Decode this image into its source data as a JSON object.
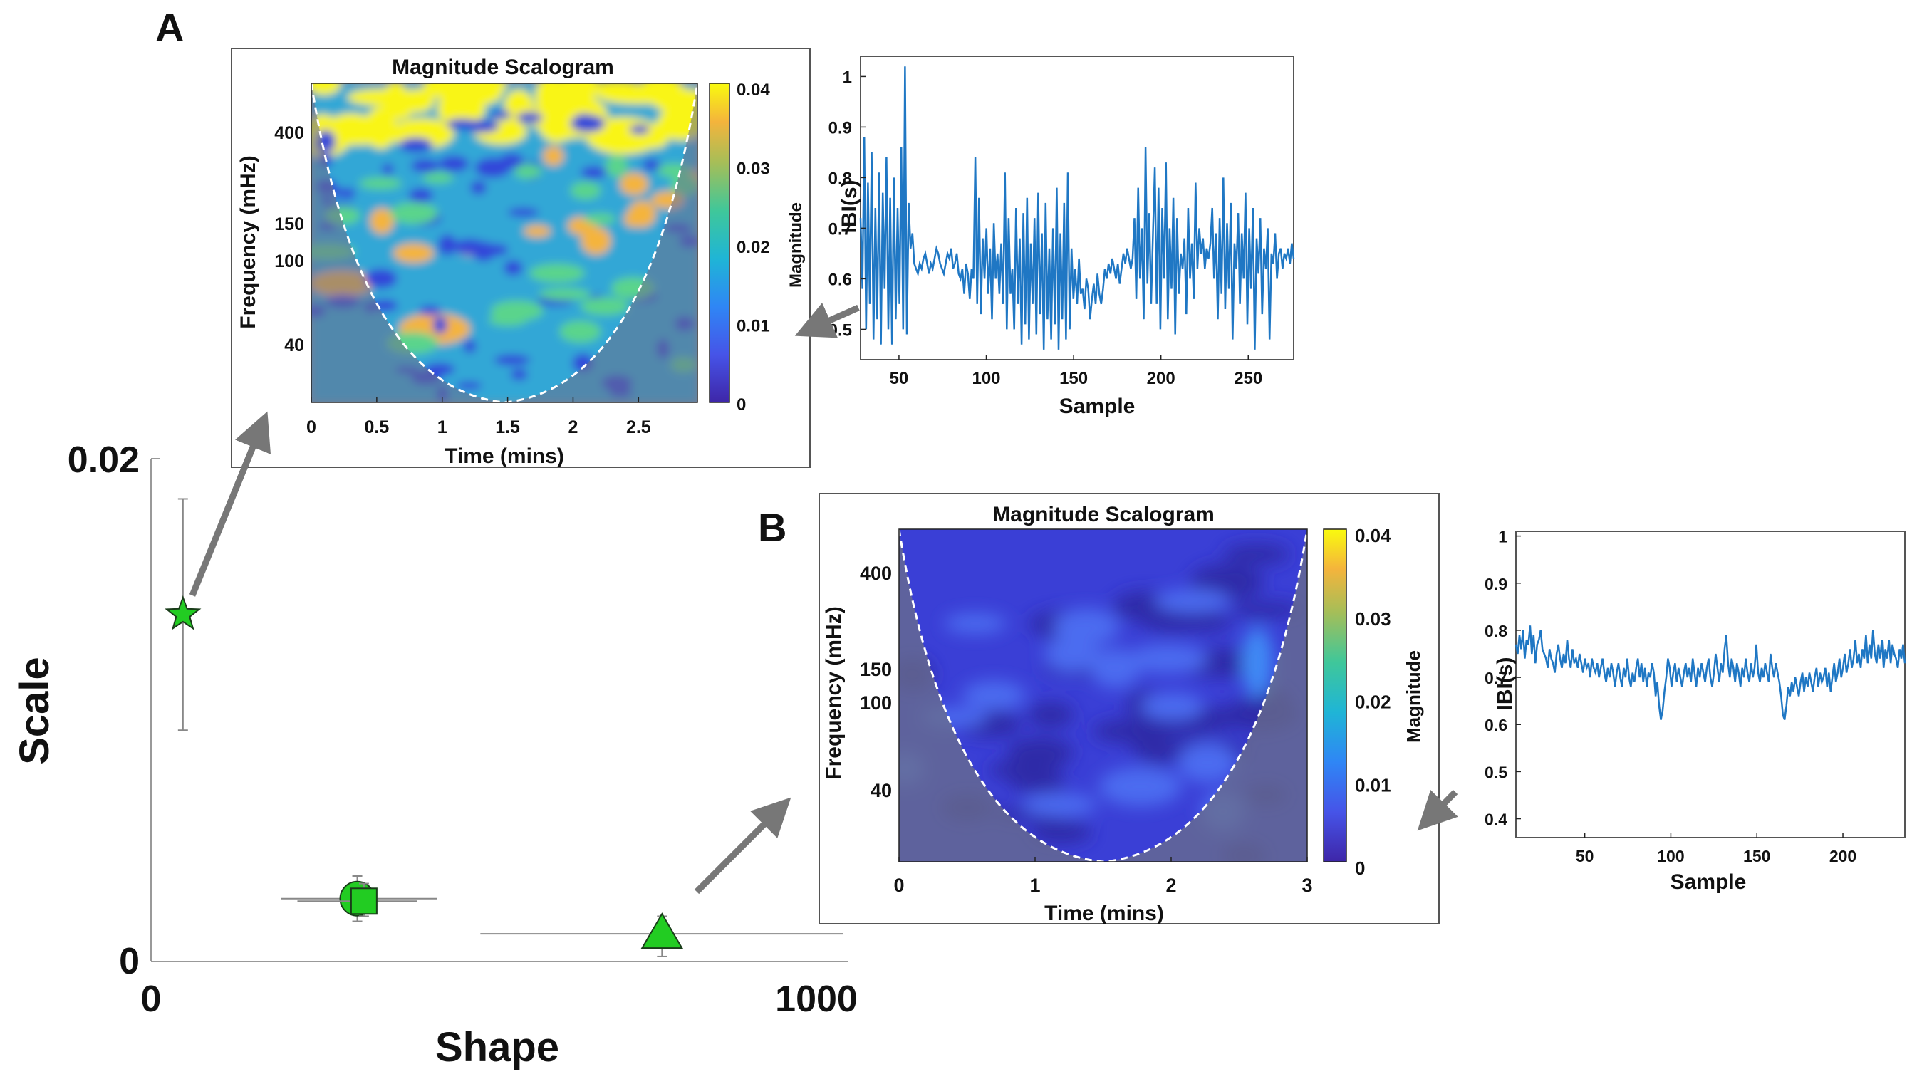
{
  "chart_data": [
    {
      "id": "main",
      "type": "scatter",
      "title": "",
      "xlabel": "Shape",
      "ylabel": "Scale",
      "xlim": [
        0,
        1040
      ],
      "ylim": [
        0,
        0.02
      ],
      "xticks": [
        "0",
        "1000"
      ],
      "yticks": [
        "0",
        "0.02"
      ],
      "grid": false,
      "points": [
        {
          "name": "star",
          "marker": "star",
          "x": 48,
          "y": 0.0138,
          "x_err": [
            45,
            51
          ],
          "y_err": [
            0.0092,
            0.0184
          ],
          "color": "#22cc22"
        },
        {
          "name": "circle",
          "marker": "circle",
          "x": 310,
          "y": 0.0025,
          "x_err": [
            195,
            430
          ],
          "y_err": [
            0.0016,
            0.0034
          ],
          "color": "#22cc22"
        },
        {
          "name": "square",
          "marker": "square",
          "x": 320,
          "y": 0.0024,
          "x_err": [
            220,
            400
          ],
          "y_err": [
            0.0018,
            0.0031
          ],
          "color": "#22cc22"
        },
        {
          "name": "triangle",
          "marker": "triangle",
          "x": 768,
          "y": 0.0011,
          "x_err": [
            495,
            1040
          ],
          "y_err": [
            0.0002,
            0.0018
          ],
          "color": "#22cc22"
        }
      ]
    },
    {
      "id": "scalogram_A",
      "type": "heatmap",
      "panel": "A",
      "title": "Magnitude Scalogram",
      "xlabel": "Time (mins)",
      "ylabel": "Frequency (mHz)",
      "xlim": [
        0,
        2.95
      ],
      "xticks": [
        "0",
        "0.5",
        "1",
        "1.5",
        "2",
        "2.5"
      ],
      "yticks": [
        "400",
        "150",
        "100",
        "40"
      ],
      "colorbar_label": "Magnitude",
      "colorbar_ticks": [
        "0.04",
        "0.03",
        "0.02",
        "0.01",
        "0"
      ],
      "clim": [
        0,
        0.04
      ],
      "activity": "high"
    },
    {
      "id": "ibi_A",
      "type": "line",
      "panel": "A",
      "title": "",
      "xlabel": "Sample",
      "ylabel": "IBI(s)",
      "xlim": [
        28,
        276
      ],
      "ylim": [
        0.44,
        1.04
      ],
      "xticks": [
        "50",
        "100",
        "150",
        "200",
        "250"
      ],
      "yticks": [
        "1",
        "0.9",
        "0.8",
        "0.7",
        "0.6",
        "0.5"
      ],
      "series": [
        {
          "name": "IBI",
          "color": "#1f77c4",
          "values": [
            0.72,
            0.58,
            0.88,
            0.5,
            0.79,
            0.55,
            0.85,
            0.48,
            0.74,
            0.52,
            0.81,
            0.47,
            0.77,
            0.58,
            0.84,
            0.5,
            0.76,
            0.47,
            0.8,
            0.52,
            0.74,
            0.55,
            0.86,
            0.5,
            1.02,
            0.49,
            0.75,
            0.66,
            0.69,
            0.63,
            0.62,
            0.61,
            0.63,
            0.62,
            0.64,
            0.65,
            0.63,
            0.61,
            0.63,
            0.62,
            0.64,
            0.66,
            0.65,
            0.63,
            0.62,
            0.61,
            0.63,
            0.65,
            0.64,
            0.66,
            0.62,
            0.63,
            0.65,
            0.61,
            0.6,
            0.62,
            0.57,
            0.63,
            0.61,
            0.56,
            0.62,
            0.6,
            0.84,
            0.55,
            0.76,
            0.53,
            0.68,
            0.6,
            0.7,
            0.57,
            0.66,
            0.52,
            0.71,
            0.6,
            0.65,
            0.57,
            0.67,
            0.55,
            0.81,
            0.5,
            0.72,
            0.57,
            0.62,
            0.5,
            0.74,
            0.55,
            0.68,
            0.47,
            0.73,
            0.51,
            0.76,
            0.48,
            0.67,
            0.55,
            0.72,
            0.49,
            0.77,
            0.53,
            0.69,
            0.46,
            0.75,
            0.52,
            0.66,
            0.48,
            0.7,
            0.51,
            0.78,
            0.46,
            0.69,
            0.52,
            0.75,
            0.48,
            0.81,
            0.5,
            0.66,
            0.56,
            0.62,
            0.55,
            0.64,
            0.57,
            0.58,
            0.54,
            0.6,
            0.58,
            0.52,
            0.56,
            0.59,
            0.55,
            0.61,
            0.57,
            0.55,
            0.58,
            0.62,
            0.6,
            0.63,
            0.61,
            0.64,
            0.62,
            0.6,
            0.63,
            0.59,
            0.62,
            0.65,
            0.63,
            0.66,
            0.64,
            0.62,
            0.64,
            0.72,
            0.56,
            0.78,
            0.6,
            0.7,
            0.52,
            0.86,
            0.59,
            0.73,
            0.55,
            0.69,
            0.82,
            0.55,
            0.78,
            0.5,
            0.74,
            0.6,
            0.83,
            0.52,
            0.7,
            0.58,
            0.76,
            0.49,
            0.72,
            0.57,
            0.65,
            0.62,
            0.68,
            0.53,
            0.74,
            0.6,
            0.67,
            0.56,
            0.79,
            0.62,
            0.7,
            0.65,
            0.68,
            0.62,
            0.66,
            0.64,
            0.67,
            0.74,
            0.6,
            0.69,
            0.52,
            0.72,
            0.57,
            0.8,
            0.54,
            0.71,
            0.58,
            0.75,
            0.48,
            0.67,
            0.62,
            0.73,
            0.55,
            0.69,
            0.6,
            0.77,
            0.51,
            0.7,
            0.58,
            0.74,
            0.46,
            0.68,
            0.61,
            0.72,
            0.53,
            0.66,
            0.62,
            0.7,
            0.48,
            0.65,
            0.63,
            0.69,
            0.6,
            0.65,
            0.66,
            0.62,
            0.65,
            0.64,
            0.66,
            0.63,
            0.67,
            0.64
          ]
        }
      ]
    },
    {
      "id": "scalogram_B",
      "type": "heatmap",
      "panel": "B",
      "title": "Magnitude Scalogram",
      "xlabel": "Time (mins)",
      "ylabel": "Frequency (mHz)",
      "xlim": [
        0,
        3
      ],
      "xticks": [
        "0",
        "1",
        "2",
        "3"
      ],
      "yticks": [
        "400",
        "150",
        "100",
        "40"
      ],
      "colorbar_label": "Magnitude",
      "colorbar_ticks": [
        "0.04",
        "0.03",
        "0.02",
        "0.01",
        "0"
      ],
      "clim": [
        0,
        0.04
      ],
      "activity": "low"
    },
    {
      "id": "ibi_B",
      "type": "line",
      "panel": "B",
      "title": "",
      "xlabel": "Sample",
      "ylabel": "IBI(s)",
      "xlim": [
        10,
        236
      ],
      "ylim": [
        0.36,
        1.01
      ],
      "xticks": [
        "50",
        "100",
        "150",
        "200"
      ],
      "yticks": [
        "1",
        "0.9",
        "0.8",
        "0.7",
        "0.6",
        "0.5",
        "0.4"
      ],
      "series": [
        {
          "name": "IBI",
          "color": "#1f77c4",
          "values": [
            0.77,
            0.75,
            0.79,
            0.76,
            0.8,
            0.74,
            0.78,
            0.77,
            0.81,
            0.75,
            0.79,
            0.73,
            0.77,
            0.78,
            0.8,
            0.76,
            0.75,
            0.74,
            0.72,
            0.76,
            0.74,
            0.73,
            0.71,
            0.75,
            0.77,
            0.74,
            0.72,
            0.75,
            0.73,
            0.78,
            0.74,
            0.72,
            0.76,
            0.73,
            0.74,
            0.72,
            0.75,
            0.73,
            0.71,
            0.74,
            0.72,
            0.73,
            0.7,
            0.74,
            0.72,
            0.71,
            0.73,
            0.7,
            0.72,
            0.74,
            0.71,
            0.69,
            0.72,
            0.7,
            0.73,
            0.71,
            0.68,
            0.71,
            0.73,
            0.7,
            0.68,
            0.72,
            0.7,
            0.74,
            0.7,
            0.68,
            0.71,
            0.69,
            0.72,
            0.74,
            0.7,
            0.73,
            0.69,
            0.72,
            0.68,
            0.71,
            0.7,
            0.73,
            0.71,
            0.66,
            0.69,
            0.64,
            0.61,
            0.63,
            0.67,
            0.7,
            0.74,
            0.72,
            0.68,
            0.71,
            0.73,
            0.69,
            0.72,
            0.7,
            0.68,
            0.71,
            0.73,
            0.7,
            0.72,
            0.69,
            0.74,
            0.71,
            0.68,
            0.72,
            0.7,
            0.73,
            0.71,
            0.69,
            0.72,
            0.74,
            0.7,
            0.68,
            0.71,
            0.75,
            0.72,
            0.69,
            0.73,
            0.71,
            0.76,
            0.79,
            0.73,
            0.7,
            0.74,
            0.72,
            0.69,
            0.73,
            0.71,
            0.68,
            0.72,
            0.7,
            0.74,
            0.71,
            0.69,
            0.73,
            0.7,
            0.72,
            0.77,
            0.71,
            0.69,
            0.72,
            0.7,
            0.73,
            0.71,
            0.69,
            0.75,
            0.72,
            0.7,
            0.73,
            0.71,
            0.69,
            0.66,
            0.62,
            0.61,
            0.64,
            0.68,
            0.66,
            0.69,
            0.67,
            0.7,
            0.68,
            0.66,
            0.69,
            0.71,
            0.67,
            0.7,
            0.68,
            0.71,
            0.69,
            0.67,
            0.7,
            0.72,
            0.68,
            0.71,
            0.69,
            0.7,
            0.72,
            0.68,
            0.71,
            0.67,
            0.7,
            0.73,
            0.69,
            0.71,
            0.74,
            0.7,
            0.72,
            0.75,
            0.71,
            0.73,
            0.76,
            0.72,
            0.74,
            0.78,
            0.73,
            0.75,
            0.72,
            0.76,
            0.74,
            0.79,
            0.73,
            0.77,
            0.74,
            0.8,
            0.75,
            0.73,
            0.77,
            0.74,
            0.78,
            0.72,
            0.76,
            0.74,
            0.78,
            0.73,
            0.77,
            0.75,
            0.74,
            0.72,
            0.76,
            0.74,
            0.77,
            0.73
          ]
        }
      ]
    }
  ],
  "labels": {
    "panel_a": "A",
    "panel_b": "B"
  },
  "colors": {
    "marker_fill": "#22cc22",
    "arrow": "#777777",
    "line": "#1f77c4",
    "cone": "#6b6f8a"
  }
}
